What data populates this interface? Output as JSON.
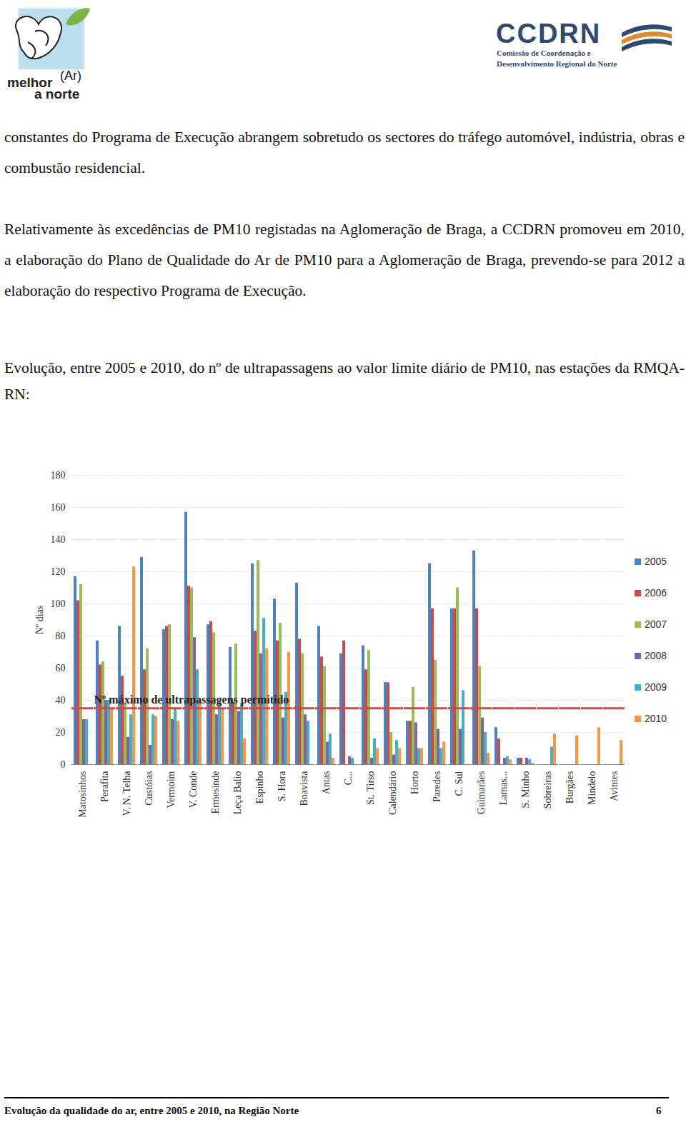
{
  "header": {
    "left_logo": {
      "line1": "melhor",
      "bracket": "(Ar)",
      "line2": "a norte"
    },
    "right_logo": {
      "acronym": "CCDRN",
      "line1": "Comissão de Coordenação e",
      "line2": "Desenvolvimento Regional do Norte"
    }
  },
  "paragraphs": [
    "constantes do Programa de Execução abrangem sobretudo os sectores do tráfego automóvel, indústria, obras e combustão residencial.",
    "Relativamente às excedências de PM10 registadas na Aglomeração de Braga, a CCDRN promoveu em 2010, a elaboração do Plano de Qualidade do Ar de PM10 para a Aglomeração de Braga, prevendo-se para 2012 a elaboração do respectivo Programa de Execução."
  ],
  "chart_data": {
    "type": "bar",
    "title": "Evolução, entre 2005 e 2010, do nº de ultrapassagens ao valor limite diário de PM10, nas estações da RMQA-RN:",
    "y_label": "Nº dias",
    "categories": [
      "Matosinhos",
      "Perafita",
      "V. N. Telha",
      "Custóias",
      "Vermoim",
      "V. Conde",
      "Ermesinde",
      "Leça Balio",
      "Espinho",
      "S. Hora",
      "Boavista",
      "Antas",
      "C...",
      "St. Tirso",
      "Calendário",
      "Horto",
      "Paredes",
      "C. Sul",
      "Guimarães",
      "Lamas...",
      "S. Minho",
      "Sobreiras",
      "Burgães",
      "Mindelo",
      "Avintes"
    ],
    "series": [
      {
        "name": "2005",
        "color": "#4f81bd",
        "values": [
          117,
          77,
          86,
          129,
          84,
          157,
          87,
          73,
          125,
          103,
          113,
          86,
          69,
          74,
          51,
          27,
          125,
          97,
          133,
          23,
          4,
          null,
          null,
          null,
          null
        ]
      },
      {
        "name": "2006",
        "color": "#c0504d",
        "values": [
          102,
          62,
          55,
          59,
          86,
          111,
          89,
          39,
          83,
          77,
          78,
          67,
          77,
          59,
          51,
          27,
          97,
          97,
          97,
          16,
          4,
          null,
          null,
          null,
          null
        ]
      },
      {
        "name": "2007",
        "color": "#9bbb59",
        "values": [
          112,
          64,
          38,
          72,
          87,
          110,
          82,
          75,
          127,
          88,
          69,
          61,
          null,
          71,
          20,
          48,
          65,
          110,
          61,
          null,
          null,
          null,
          null,
          null,
          null
        ]
      },
      {
        "name": "2008",
        "color": "#8064a2",
        "values": [
          28,
          40,
          17,
          12,
          28,
          79,
          31,
          33,
          69,
          29,
          31,
          14,
          5,
          4,
          6,
          26,
          22,
          22,
          29,
          4,
          4,
          null,
          null,
          null,
          null
        ]
      },
      {
        "name": "2009",
        "color": "#4bacc6",
        "values": [
          28,
          40,
          31,
          31,
          35,
          59,
          39,
          38,
          91,
          45,
          27,
          19,
          4,
          16,
          15,
          10,
          10,
          46,
          20,
          5,
          3,
          11,
          null,
          null,
          null
        ]
      },
      {
        "name": "2010",
        "color": "#f79646",
        "values": [
          null,
          35,
          123,
          30,
          27,
          40,
          35,
          16,
          72,
          70,
          null,
          4,
          null,
          10,
          10,
          10,
          14,
          null,
          7,
          3,
          1,
          19,
          18,
          23,
          15
        ]
      }
    ],
    "threshold": {
      "value": 35,
      "label": "Nº máximo de ultrapassagens permitido",
      "color": "#c0504d"
    },
    "ylim": [
      0,
      180
    ],
    "yticks": [
      0,
      20,
      40,
      60,
      80,
      100,
      120,
      140,
      160,
      180
    ],
    "grid": true,
    "legend": "right"
  },
  "footer": {
    "text": "Evolução da qualidade do ar, entre 2005 e 2010, na Região Norte",
    "page": "6"
  }
}
